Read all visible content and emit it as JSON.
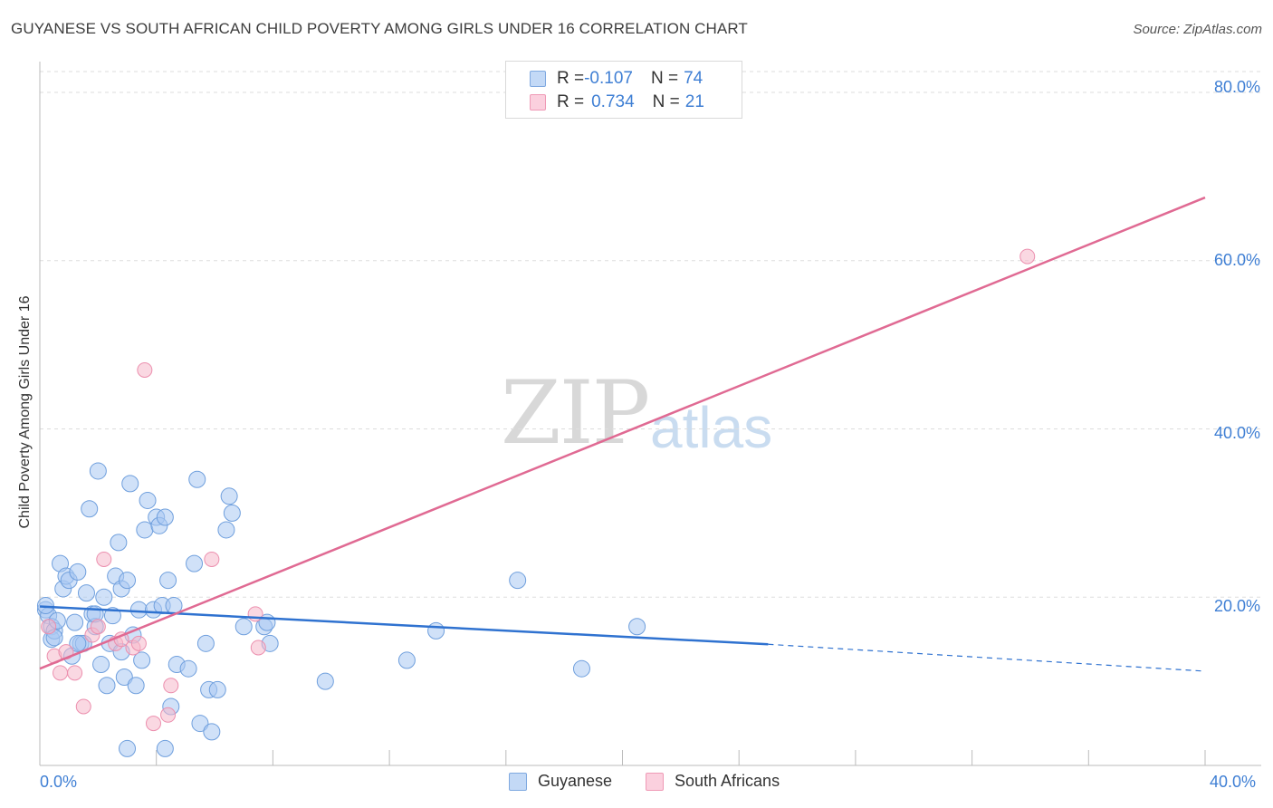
{
  "title": "GUYANESE VS SOUTH AFRICAN CHILD POVERTY AMONG GIRLS UNDER 16 CORRELATION CHART",
  "source": "Source: ZipAtlas.com",
  "watermark": {
    "zip": "ZIP",
    "atlas": "atlas"
  },
  "legend": {
    "rows": [
      {
        "r_label": "R = ",
        "r_value": "-0.107",
        "n_label": "N = ",
        "n_value": "74",
        "color": "#a9c8f2"
      },
      {
        "r_label": "R = ",
        "r_value": "0.734",
        "n_label": "N = ",
        "n_value": "21",
        "color": "#f6b8cb"
      }
    ]
  },
  "bottom_legend": {
    "guyanese": "Guyanese",
    "south_africans": "South Africans"
  },
  "chart_data": {
    "type": "scatter",
    "title": "GUYANESE VS SOUTH AFRICAN CHILD POVERTY AMONG GIRLS UNDER 16 CORRELATION CHART",
    "xlabel": "",
    "ylabel": "Child Poverty Among Girls Under 16",
    "xlim": [
      0,
      40
    ],
    "ylim": [
      0,
      80
    ],
    "x_ticks": [
      "0.0%",
      "40.0%"
    ],
    "y_ticks": [
      "20.0%",
      "40.0%",
      "60.0%",
      "80.0%"
    ],
    "grid": true,
    "colors": {
      "guyanese": "#a9c8f2",
      "guyanese_line": "#2f72d0",
      "south_africans": "#f6b8cb",
      "south_africans_line": "#e06a93"
    },
    "series": [
      {
        "name": "Guyanese",
        "r": -0.107,
        "n": 74,
        "trend": {
          "x": [
            0,
            25
          ],
          "y": [
            18.9,
            14.4
          ],
          "dashed_to": [
            40,
            11.2
          ]
        },
        "points": [
          [
            0.2,
            18.5
          ],
          [
            0.3,
            17.8
          ],
          [
            0.4,
            16.5
          ],
          [
            0.4,
            15.0
          ],
          [
            0.5,
            16.0
          ],
          [
            0.5,
            15.2
          ],
          [
            0.6,
            17.2
          ],
          [
            0.7,
            24.0
          ],
          [
            0.8,
            21.0
          ],
          [
            0.9,
            22.5
          ],
          [
            1.0,
            22.0
          ],
          [
            1.1,
            13.0
          ],
          [
            1.2,
            17.0
          ],
          [
            1.3,
            23.0
          ],
          [
            1.4,
            14.5
          ],
          [
            1.5,
            14.5
          ],
          [
            1.6,
            20.5
          ],
          [
            1.7,
            30.5
          ],
          [
            1.8,
            18.0
          ],
          [
            1.9,
            16.5
          ],
          [
            2.0,
            35.0
          ],
          [
            2.1,
            12.0
          ],
          [
            2.2,
            20.0
          ],
          [
            2.3,
            9.5
          ],
          [
            2.4,
            14.5
          ],
          [
            2.5,
            17.8
          ],
          [
            2.6,
            22.5
          ],
          [
            2.7,
            26.5
          ],
          [
            2.8,
            21.0
          ],
          [
            2.9,
            10.5
          ],
          [
            3.0,
            22.0
          ],
          [
            3.1,
            33.5
          ],
          [
            3.2,
            15.5
          ],
          [
            3.3,
            9.5
          ],
          [
            3.4,
            18.5
          ],
          [
            3.5,
            12.5
          ],
          [
            3.6,
            28.0
          ],
          [
            3.7,
            31.5
          ],
          [
            3.9,
            18.5
          ],
          [
            4.0,
            29.5
          ],
          [
            4.1,
            28.5
          ],
          [
            4.2,
            19.0
          ],
          [
            4.3,
            29.5
          ],
          [
            4.4,
            22.0
          ],
          [
            4.5,
            7.0
          ],
          [
            4.6,
            19.0
          ],
          [
            4.7,
            12.0
          ],
          [
            5.1,
            11.5
          ],
          [
            5.3,
            24.0
          ],
          [
            5.4,
            34.0
          ],
          [
            5.5,
            5.0
          ],
          [
            5.7,
            14.5
          ],
          [
            5.8,
            9.0
          ],
          [
            5.9,
            4.0
          ],
          [
            6.1,
            9.0
          ],
          [
            6.4,
            28.0
          ],
          [
            6.5,
            32.0
          ],
          [
            6.6,
            30.0
          ],
          [
            7.0,
            16.5
          ],
          [
            7.7,
            16.5
          ],
          [
            7.8,
            17.0
          ],
          [
            7.9,
            14.5
          ],
          [
            9.8,
            10.0
          ],
          [
            12.6,
            12.5
          ],
          [
            13.6,
            16.0
          ],
          [
            16.4,
            22.0
          ],
          [
            18.6,
            11.5
          ],
          [
            20.5,
            16.5
          ],
          [
            3.0,
            2.0
          ],
          [
            4.3,
            2.0
          ],
          [
            1.3,
            14.5
          ],
          [
            0.2,
            19.0
          ],
          [
            2.8,
            13.5
          ],
          [
            1.9,
            18.0
          ]
        ]
      },
      {
        "name": "South Africans",
        "r": 0.734,
        "n": 21,
        "trend": {
          "x": [
            0,
            40
          ],
          "y": [
            11.5,
            67.5
          ]
        },
        "points": [
          [
            0.3,
            16.5
          ],
          [
            0.5,
            13.0
          ],
          [
            0.7,
            11.0
          ],
          [
            0.9,
            13.5
          ],
          [
            1.2,
            11.0
          ],
          [
            1.5,
            7.0
          ],
          [
            1.8,
            15.5
          ],
          [
            2.0,
            16.5
          ],
          [
            2.2,
            24.5
          ],
          [
            2.6,
            14.5
          ],
          [
            2.8,
            15.0
          ],
          [
            3.2,
            14.0
          ],
          [
            3.4,
            14.5
          ],
          [
            3.6,
            47.0
          ],
          [
            3.9,
            5.0
          ],
          [
            4.4,
            6.0
          ],
          [
            4.5,
            9.5
          ],
          [
            5.9,
            24.5
          ],
          [
            7.4,
            18.0
          ],
          [
            7.5,
            14.0
          ],
          [
            33.9,
            60.5
          ]
        ]
      }
    ]
  }
}
